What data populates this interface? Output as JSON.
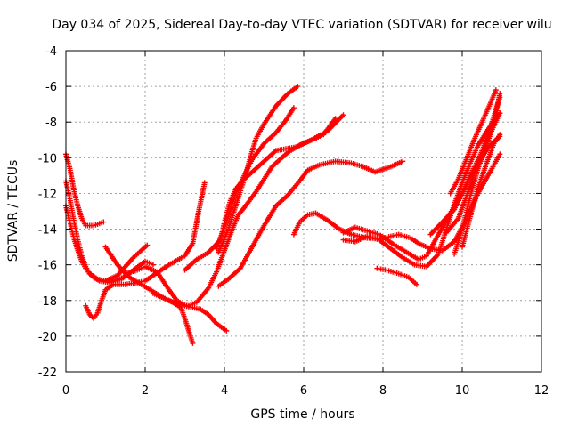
{
  "chart_data": {
    "type": "scatter",
    "title": "Day 034 of 2025, Sidereal Day-to-day VTEC variation (SDTVAR) for receiver wilu",
    "xlabel": "GPS time / hours",
    "ylabel": "SDTVAR / TECUs",
    "xlim": [
      0,
      12
    ],
    "ylim": [
      -22,
      -4
    ],
    "xticks": [
      0,
      2,
      4,
      6,
      8,
      10,
      12
    ],
    "yticks": [
      -22,
      -20,
      -18,
      -16,
      -14,
      -12,
      -10,
      -8,
      -6,
      -4
    ],
    "xtick_labels": [
      "0",
      "2",
      "4",
      "6",
      "8",
      "10",
      "12"
    ],
    "ytick_labels": [
      "-22",
      "-20",
      "-18",
      "-16",
      "-14",
      "-12",
      "-10",
      "-8",
      "-6",
      "-4"
    ],
    "grid": true,
    "marker": "+",
    "color": "#ff0000",
    "series": [
      {
        "name": "a1",
        "points": [
          [
            0.0,
            -9.8
          ],
          [
            0.1,
            -10.6
          ],
          [
            0.2,
            -11.8
          ],
          [
            0.3,
            -12.7
          ],
          [
            0.4,
            -13.4
          ],
          [
            0.5,
            -13.8
          ],
          [
            0.7,
            -13.8
          ],
          [
            0.95,
            -13.6
          ]
        ]
      },
      {
        "name": "a2",
        "points": [
          [
            0.0,
            -11.3
          ],
          [
            0.1,
            -12.3
          ],
          [
            0.2,
            -13.5
          ],
          [
            0.3,
            -14.6
          ],
          [
            0.4,
            -15.5
          ],
          [
            0.5,
            -16.1
          ],
          [
            0.6,
            -16.5
          ],
          [
            0.8,
            -16.8
          ],
          [
            1.0,
            -16.9
          ],
          [
            1.2,
            -16.9
          ],
          [
            1.45,
            -16.7
          ]
        ]
      },
      {
        "name": "a3",
        "points": [
          [
            0.0,
            -12.7
          ],
          [
            0.1,
            -13.6
          ],
          [
            0.2,
            -14.5
          ],
          [
            0.3,
            -15.2
          ],
          [
            0.4,
            -15.8
          ],
          [
            0.5,
            -16.2
          ],
          [
            0.6,
            -16.5
          ],
          [
            0.7,
            -16.7
          ],
          [
            0.85,
            -16.9
          ],
          [
            1.1,
            -17.0
          ],
          [
            1.4,
            -16.8
          ],
          [
            1.7,
            -16.3
          ],
          [
            2.0,
            -15.8
          ],
          [
            2.2,
            -16.0
          ]
        ]
      },
      {
        "name": "a4",
        "points": [
          [
            0.5,
            -18.3
          ],
          [
            0.6,
            -18.8
          ],
          [
            0.7,
            -19.0
          ],
          [
            0.8,
            -18.7
          ],
          [
            0.9,
            -18.0
          ],
          [
            1.0,
            -17.4
          ],
          [
            1.2,
            -17.1
          ],
          [
            1.5,
            -17.1
          ],
          [
            1.8,
            -17.0
          ],
          [
            2.0,
            -16.9
          ],
          [
            2.2,
            -16.6
          ],
          [
            2.6,
            -16.0
          ],
          [
            3.0,
            -15.5
          ],
          [
            3.2,
            -14.8
          ],
          [
            3.35,
            -13.0
          ],
          [
            3.5,
            -11.4
          ]
        ]
      },
      {
        "name": "a5",
        "points": [
          [
            1.0,
            -15.0
          ],
          [
            1.3,
            -16.0
          ],
          [
            1.6,
            -16.7
          ],
          [
            1.9,
            -17.1
          ],
          [
            2.2,
            -17.5
          ],
          [
            2.5,
            -17.9
          ],
          [
            2.7,
            -18.1
          ],
          [
            2.9,
            -18.4
          ],
          [
            3.0,
            -19.0
          ],
          [
            3.1,
            -19.7
          ],
          [
            3.2,
            -20.4
          ]
        ]
      },
      {
        "name": "a6",
        "points": [
          [
            1.0,
            -16.9
          ],
          [
            1.3,
            -16.6
          ],
          [
            1.5,
            -16.1
          ],
          [
            1.7,
            -15.6
          ],
          [
            1.9,
            -15.2
          ],
          [
            2.05,
            -14.9
          ]
        ]
      },
      {
        "name": "a7",
        "points": [
          [
            1.5,
            -16.5
          ],
          [
            1.8,
            -16.3
          ],
          [
            2.0,
            -16.1
          ],
          [
            2.3,
            -16.4
          ],
          [
            2.6,
            -17.4
          ],
          [
            2.8,
            -18.0
          ],
          [
            3.0,
            -18.3
          ],
          [
            3.2,
            -18.4
          ],
          [
            3.4,
            -18.5
          ],
          [
            3.6,
            -18.8
          ],
          [
            3.8,
            -19.3
          ],
          [
            4.05,
            -19.7
          ]
        ]
      },
      {
        "name": "a8",
        "points": [
          [
            2.2,
            -17.6
          ],
          [
            2.5,
            -17.9
          ],
          [
            2.8,
            -18.2
          ],
          [
            3.1,
            -18.3
          ],
          [
            3.3,
            -18.1
          ],
          [
            3.6,
            -17.3
          ],
          [
            3.8,
            -16.4
          ],
          [
            4.0,
            -15.2
          ],
          [
            4.2,
            -14.0
          ],
          [
            4.35,
            -13.2
          ],
          [
            4.5,
            -12.8
          ],
          [
            4.8,
            -11.9
          ],
          [
            5.2,
            -10.5
          ],
          [
            5.6,
            -9.7
          ],
          [
            5.9,
            -9.3
          ],
          [
            6.2,
            -9.0
          ],
          [
            6.6,
            -8.5
          ],
          [
            7.0,
            -7.6
          ]
        ]
      },
      {
        "name": "a9",
        "points": [
          [
            3.0,
            -16.3
          ],
          [
            3.3,
            -15.7
          ],
          [
            3.6,
            -15.3
          ],
          [
            3.9,
            -14.6
          ],
          [
            4.0,
            -13.6
          ],
          [
            4.15,
            -12.4
          ],
          [
            4.3,
            -11.7
          ],
          [
            4.5,
            -11.2
          ],
          [
            4.9,
            -10.4
          ],
          [
            5.3,
            -9.6
          ],
          [
            5.8,
            -9.4
          ],
          [
            6.1,
            -9.1
          ],
          [
            6.5,
            -8.7
          ],
          [
            6.8,
            -7.8
          ]
        ]
      },
      {
        "name": "a10",
        "points": [
          [
            3.8,
            -15.1
          ],
          [
            4.1,
            -13.3
          ],
          [
            4.3,
            -11.9
          ],
          [
            4.5,
            -11.0
          ],
          [
            4.7,
            -10.1
          ],
          [
            5.0,
            -9.2
          ],
          [
            5.3,
            -8.6
          ],
          [
            5.55,
            -7.9
          ],
          [
            5.75,
            -7.2
          ]
        ]
      },
      {
        "name": "a11",
        "points": [
          [
            3.85,
            -15.3
          ],
          [
            4.1,
            -14.0
          ],
          [
            4.3,
            -12.6
          ],
          [
            4.5,
            -11.2
          ],
          [
            4.65,
            -10.0
          ],
          [
            4.8,
            -8.9
          ],
          [
            5.0,
            -8.1
          ],
          [
            5.3,
            -7.1
          ],
          [
            5.6,
            -6.4
          ],
          [
            5.85,
            -6.0
          ]
        ]
      },
      {
        "name": "a12",
        "points": [
          [
            3.85,
            -17.2
          ],
          [
            4.1,
            -16.8
          ],
          [
            4.4,
            -16.2
          ],
          [
            4.7,
            -15.0
          ],
          [
            5.0,
            -13.8
          ],
          [
            5.3,
            -12.7
          ],
          [
            5.6,
            -12.1
          ],
          [
            5.9,
            -11.3
          ],
          [
            6.1,
            -10.7
          ],
          [
            6.4,
            -10.4
          ],
          [
            6.8,
            -10.2
          ],
          [
            7.2,
            -10.3
          ],
          [
            7.5,
            -10.5
          ],
          [
            7.8,
            -10.8
          ],
          [
            8.2,
            -10.5
          ],
          [
            8.5,
            -10.2
          ]
        ]
      },
      {
        "name": "a13",
        "points": [
          [
            5.75,
            -14.3
          ],
          [
            5.9,
            -13.6
          ],
          [
            6.1,
            -13.2
          ],
          [
            6.3,
            -13.1
          ],
          [
            6.6,
            -13.5
          ],
          [
            6.9,
            -14.0
          ],
          [
            7.2,
            -14.3
          ],
          [
            7.6,
            -14.5
          ],
          [
            8.0,
            -14.5
          ],
          [
            8.4,
            -14.3
          ],
          [
            8.7,
            -14.5
          ],
          [
            8.9,
            -14.8
          ],
          [
            9.2,
            -15.1
          ],
          [
            9.5,
            -15.2
          ],
          [
            9.8,
            -14.7
          ],
          [
            10.1,
            -13.5
          ],
          [
            10.4,
            -12.0
          ],
          [
            10.7,
            -10.8
          ],
          [
            10.95,
            -9.8
          ]
        ]
      },
      {
        "name": "a14",
        "points": [
          [
            7.0,
            -14.2
          ],
          [
            7.3,
            -13.9
          ],
          [
            7.6,
            -14.1
          ],
          [
            7.9,
            -14.3
          ],
          [
            8.3,
            -14.9
          ],
          [
            8.6,
            -15.3
          ],
          [
            8.9,
            -15.7
          ],
          [
            9.1,
            -15.5
          ],
          [
            9.4,
            -14.3
          ],
          [
            9.7,
            -13.1
          ],
          [
            10.0,
            -12.0
          ],
          [
            10.2,
            -11.1
          ],
          [
            10.4,
            -10.3
          ],
          [
            10.7,
            -9.3
          ],
          [
            10.95,
            -8.8
          ]
        ]
      },
      {
        "name": "a15",
        "points": [
          [
            7.0,
            -14.6
          ],
          [
            7.3,
            -14.7
          ],
          [
            7.6,
            -14.4
          ],
          [
            7.9,
            -14.6
          ],
          [
            8.2,
            -15.1
          ],
          [
            8.5,
            -15.6
          ],
          [
            8.8,
            -16.0
          ],
          [
            9.1,
            -16.1
          ],
          [
            9.4,
            -15.4
          ],
          [
            9.6,
            -14.0
          ],
          [
            9.8,
            -12.6
          ],
          [
            10.0,
            -11.4
          ],
          [
            10.2,
            -10.3
          ],
          [
            10.4,
            -9.3
          ],
          [
            10.6,
            -8.6
          ],
          [
            10.8,
            -7.9
          ],
          [
            10.95,
            -7.5
          ]
        ]
      },
      {
        "name": "a16",
        "points": [
          [
            7.85,
            -16.2
          ],
          [
            8.1,
            -16.3
          ],
          [
            8.4,
            -16.5
          ],
          [
            8.65,
            -16.7
          ],
          [
            8.85,
            -17.1
          ]
        ]
      },
      {
        "name": "a17",
        "points": [
          [
            9.2,
            -14.3
          ],
          [
            9.5,
            -13.6
          ],
          [
            9.8,
            -12.9
          ],
          [
            10.0,
            -12.0
          ],
          [
            10.2,
            -11.0
          ],
          [
            10.4,
            -10.1
          ],
          [
            10.6,
            -9.2
          ],
          [
            10.8,
            -8.2
          ],
          [
            10.95,
            -7.5
          ]
        ]
      },
      {
        "name": "a18",
        "points": [
          [
            9.8,
            -15.4
          ],
          [
            10.0,
            -14.0
          ],
          [
            10.2,
            -12.2
          ],
          [
            10.4,
            -10.6
          ],
          [
            10.6,
            -9.4
          ],
          [
            10.8,
            -8.1
          ],
          [
            10.95,
            -6.4
          ]
        ]
      },
      {
        "name": "a19",
        "points": [
          [
            10.0,
            -15.0
          ],
          [
            10.2,
            -13.3
          ],
          [
            10.4,
            -11.7
          ],
          [
            10.6,
            -10.4
          ],
          [
            10.8,
            -9.2
          ],
          [
            10.95,
            -8.7
          ]
        ]
      },
      {
        "name": "a20",
        "points": [
          [
            9.6,
            -14.2
          ],
          [
            9.9,
            -13.4
          ],
          [
            10.1,
            -12.2
          ],
          [
            10.3,
            -10.9
          ],
          [
            10.5,
            -9.6
          ],
          [
            10.7,
            -8.4
          ],
          [
            10.85,
            -7.3
          ],
          [
            10.95,
            -6.6
          ]
        ]
      },
      {
        "name": "a21",
        "points": [
          [
            9.7,
            -12.0
          ],
          [
            9.9,
            -11.2
          ],
          [
            10.1,
            -10.1
          ],
          [
            10.3,
            -9.0
          ],
          [
            10.5,
            -8.0
          ],
          [
            10.7,
            -7.0
          ],
          [
            10.85,
            -6.2
          ]
        ]
      }
    ]
  }
}
